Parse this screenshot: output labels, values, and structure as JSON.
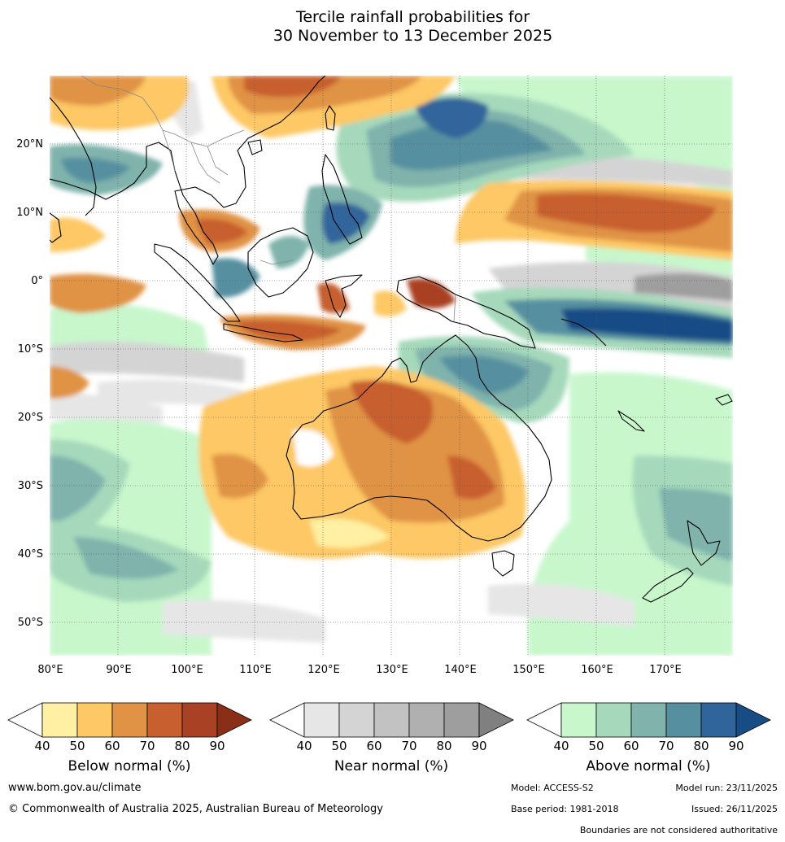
{
  "title": {
    "line1": "Tercile rainfall probabilities for",
    "line2": "30 November to 13 December 2025"
  },
  "map": {
    "lon_labels": [
      "80°E",
      "90°E",
      "100°E",
      "110°E",
      "120°E",
      "130°E",
      "140°E",
      "150°E",
      "160°E",
      "170°E"
    ],
    "lat_labels": [
      "20°N",
      "10°N",
      "0°",
      "10°S",
      "20°S",
      "30°S",
      "40°S",
      "50°S"
    ]
  },
  "colorbars": [
    {
      "label": "Below normal (%)",
      "ticks": [
        "40",
        "50",
        "60",
        "70",
        "80",
        "90"
      ],
      "colors": [
        "#ffffff",
        "#fff0a3",
        "#fdc865",
        "#e09344",
        "#c75f2f",
        "#a94124",
        "#8a2e17"
      ]
    },
    {
      "label": "Near normal (%)",
      "ticks": [
        "40",
        "50",
        "60",
        "70",
        "80",
        "90"
      ],
      "colors": [
        "#ffffff",
        "#e6e6e6",
        "#d4d4d4",
        "#c2c2c2",
        "#b0b0b0",
        "#9e9e9e",
        "#808080"
      ]
    },
    {
      "label": "Above normal (%)",
      "ticks": [
        "40",
        "50",
        "60",
        "70",
        "80",
        "90"
      ],
      "colors": [
        "#ffffff",
        "#c8f7cc",
        "#a6d9bb",
        "#7fb3ac",
        "#5690a0",
        "#30659b",
        "#174c85"
      ]
    }
  ],
  "footer": {
    "website": "www.bom.gov.au/climate",
    "copyright": "© Commonwealth of Australia 2025, Australian Bureau of Meteorology",
    "model": "Model: ACCESS-S2",
    "model_run": "Model run: 23/11/2025",
    "base_period": "Base period: 1981-2018",
    "issued": "Issued: 26/11/2025",
    "disclaimer": "Boundaries are not considered authoritative"
  }
}
